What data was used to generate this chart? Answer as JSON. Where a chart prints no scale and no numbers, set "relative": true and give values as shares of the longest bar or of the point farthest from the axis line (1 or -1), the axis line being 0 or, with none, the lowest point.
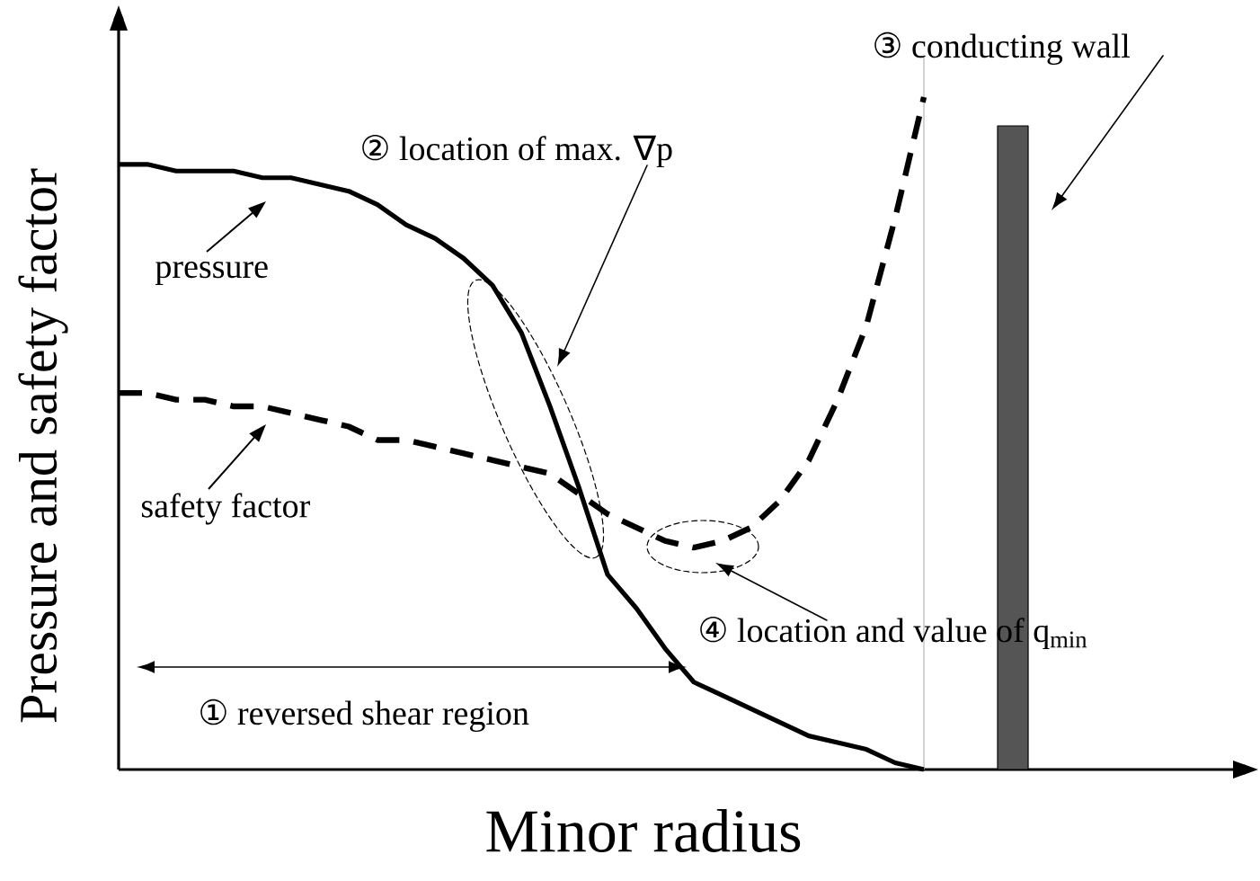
{
  "chart_data": {
    "type": "line",
    "relative": true,
    "xlabel": "Minor radius",
    "ylabel": "Pressure and safety factor",
    "marker": "none",
    "legend": "left",
    "categories": [
      null,
      null,
      null,
      null,
      null,
      null,
      null,
      null,
      null,
      null,
      null,
      null,
      null,
      null,
      null,
      null,
      null,
      null,
      null,
      null,
      null,
      null,
      null,
      null,
      null,
      null,
      null,
      null,
      null
    ],
    "series": [
      {
        "name": "pressure",
        "color": "#000000",
        "line_style": "solid",
        "values": [
          0.9,
          0.9,
          0.89,
          0.89,
          0.89,
          0.88,
          0.88,
          0.87,
          0.86,
          0.84,
          0.81,
          0.79,
          0.76,
          0.72,
          0.65,
          0.54,
          0.42,
          0.29,
          0.24,
          0.18,
          0.13,
          0.11,
          0.09,
          0.07,
          0.05,
          0.04,
          0.03,
          0.01,
          0
        ]
      },
      {
        "name": "safety factor",
        "color": "#000000",
        "line_style": "dashed",
        "values": [
          0.56,
          0.56,
          0.55,
          0.55,
          0.54,
          0.54,
          0.53,
          0.52,
          0.51,
          0.49,
          0.49,
          0.48,
          0.47,
          0.46,
          0.45,
          0.44,
          0.41,
          0.38,
          0.36,
          0.34,
          0.33,
          0.34,
          0.36,
          0.4,
          0.46,
          0.55,
          0.66,
          0.82,
          1
        ]
      }
    ],
    "annotations": [
      "① reversed shear region",
      "② location of max. ∇p",
      "③ conducting wall",
      "④ location and value of q$_{min}$"
    ]
  }
}
